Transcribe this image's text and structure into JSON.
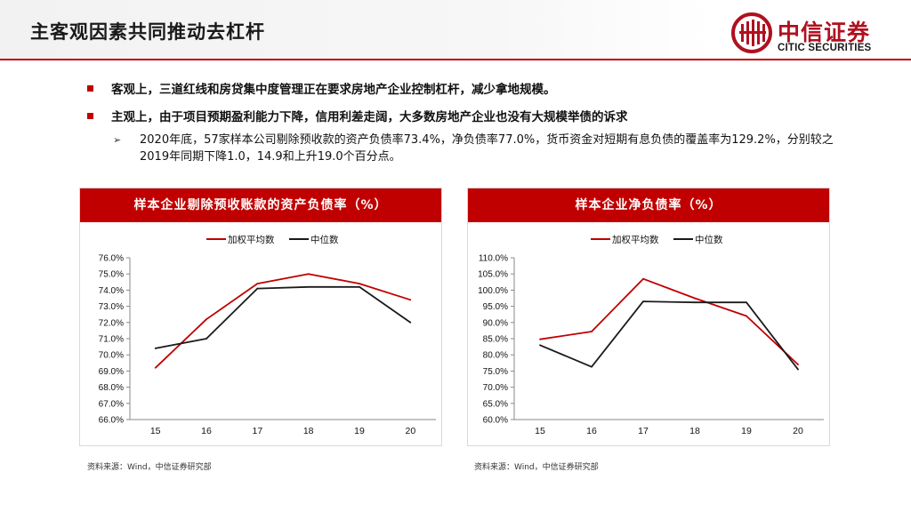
{
  "page": {
    "title": "主客观因素共同推动去杠杆",
    "logo": {
      "cn": "中信证券",
      "en": "CITIC SECURITIES"
    },
    "bullets": [
      "客观上，三道红线和房贷集中度管理正在要求房地产企业控制杠杆，减少拿地规模。",
      "主观上，由于项目预期盈利能力下降，信用利差走阔，大多数房地产企业也没有大规模举债的诉求"
    ],
    "sub_bullet": "2020年底，57家样本公司剔除预收款的资产负债率73.4%，净负债率77.0%，货币资金对短期有息负债的覆盖率为129.2%，分别较之2019年同期下降1.0，14.9和上升19.0个百分点。",
    "sub_bullet_marker": "➢",
    "sources": [
      "资料来源：Wind，中信证券研究部",
      "资料来源：Wind，中信证券研究部"
    ],
    "colors": {
      "accent": "#c00000",
      "series_avg": "#c00000",
      "series_median": "#1a1a1a"
    }
  },
  "chart_data": [
    {
      "type": "line",
      "title": "样本企业剔除预收账款的资产负债率（%）",
      "categories": [
        "15",
        "16",
        "17",
        "18",
        "19",
        "20"
      ],
      "ylim": [
        66.0,
        76.0
      ],
      "ystep": 1.0,
      "tick_labels": [
        "66.0%",
        "67.0%",
        "68.0%",
        "69.0%",
        "70.0%",
        "71.0%",
        "72.0%",
        "73.0%",
        "74.0%",
        "75.0%",
        "76.0%"
      ],
      "legend_position": "top-center",
      "grid": false,
      "series": [
        {
          "name": "加权平均数",
          "color": "#c00000",
          "values": [
            69.2,
            72.2,
            74.4,
            75.0,
            74.4,
            73.4
          ]
        },
        {
          "name": "中位数",
          "color": "#1a1a1a",
          "values": [
            70.4,
            71.0,
            74.1,
            74.2,
            74.2,
            72.0
          ]
        }
      ]
    },
    {
      "type": "line",
      "title": "样本企业净负债率（%）",
      "categories": [
        "15",
        "16",
        "17",
        "18",
        "19",
        "20"
      ],
      "ylim": [
        60.0,
        110.0
      ],
      "ystep": 5.0,
      "tick_labels": [
        "60.0%",
        "65.0%",
        "70.0%",
        "75.0%",
        "80.0%",
        "85.0%",
        "90.0%",
        "95.0%",
        "100.0%",
        "105.0%",
        "110.0%"
      ],
      "legend_position": "top-center",
      "grid": false,
      "series": [
        {
          "name": "加权平均数",
          "color": "#c00000",
          "values": [
            84.8,
            87.2,
            103.5,
            97.5,
            92.0,
            77.0
          ]
        },
        {
          "name": "中位数",
          "color": "#1a1a1a",
          "values": [
            83.0,
            76.3,
            96.5,
            96.2,
            96.2,
            75.5
          ]
        }
      ]
    }
  ]
}
